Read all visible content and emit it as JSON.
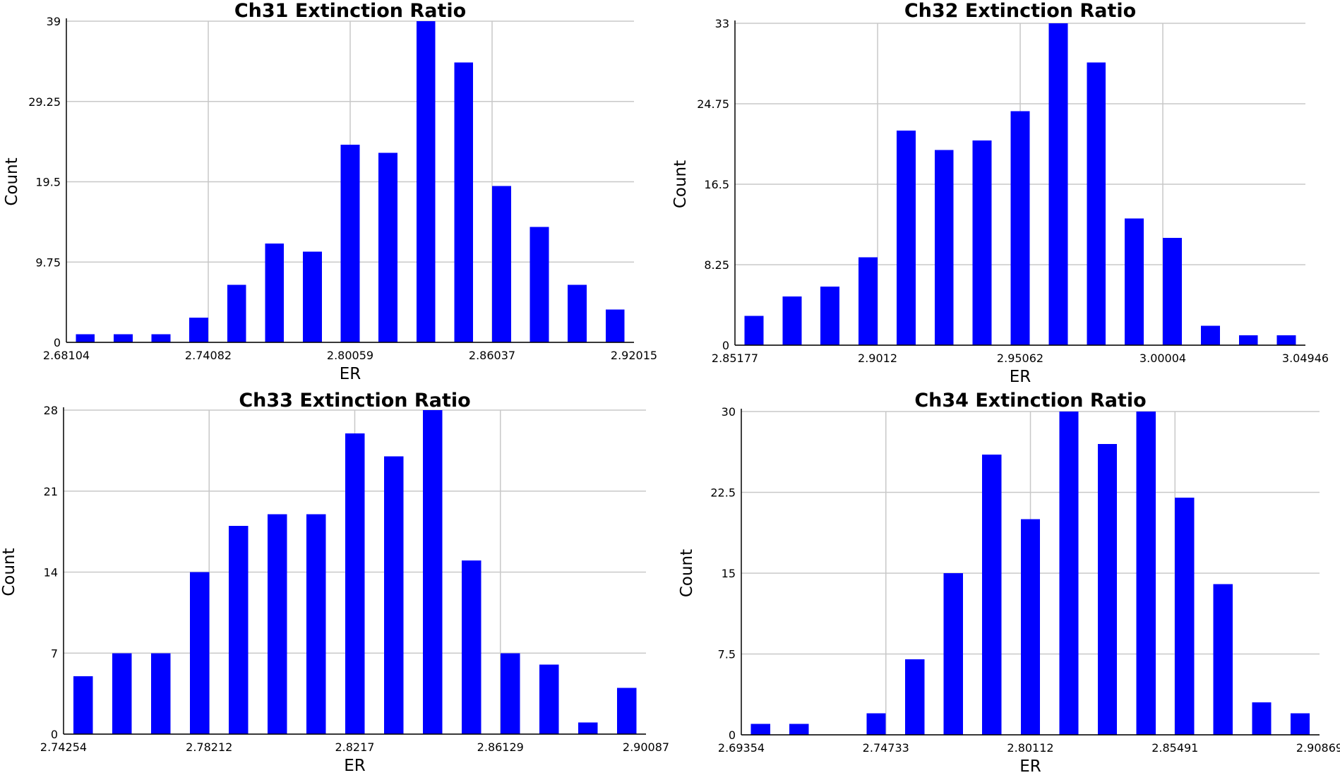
{
  "colors": {
    "bar": "#0000ff",
    "grid": "#c8c8c8",
    "axis": "#000000"
  },
  "chart_data": [
    {
      "type": "bar",
      "title": "Ch31 Extinction Ratio",
      "xlabel": "ER",
      "ylabel": "Count",
      "grid": true,
      "ylim": [
        0,
        39
      ],
      "yticks": [
        "0",
        "9.75",
        "19.5",
        "29.25",
        "39"
      ],
      "xlim": [
        2.68104,
        2.92015
      ],
      "xtick_values": [
        2.68104,
        2.74082,
        2.80059,
        2.86037,
        2.92015
      ],
      "xtick_labels": [
        "2.68104",
        "2.74082",
        "2.80059",
        "2.86037",
        "2.92015"
      ],
      "bin_width": 0.01594,
      "x": [
        2.68104,
        2.69698,
        2.71292,
        2.72886,
        2.7448,
        2.76074,
        2.77668,
        2.79262,
        2.80856,
        2.8245,
        2.84044,
        2.85638,
        2.87232,
        2.88826,
        2.9042
      ],
      "values": [
        1,
        1,
        1,
        3,
        7,
        12,
        11,
        24,
        23,
        39,
        34,
        19,
        14,
        7,
        4
      ]
    },
    {
      "type": "bar",
      "title": "Ch32 Extinction Ratio",
      "xlabel": "ER",
      "ylabel": "Count",
      "grid": true,
      "ylim": [
        0,
        33
      ],
      "yticks": [
        "0",
        "8.25",
        "16.5",
        "24.75",
        "33"
      ],
      "xlim": [
        2.85177,
        3.04946
      ],
      "xtick_values": [
        2.85177,
        2.9012,
        2.95062,
        3.00004,
        3.04946
      ],
      "xtick_labels": [
        "2.85177",
        "2.9012",
        "2.95062",
        "3.00004",
        "3.04946"
      ],
      "bin_width": 0.01318,
      "x": [
        2.85177,
        2.86495,
        2.87813,
        2.89131,
        2.90449,
        2.91767,
        2.93085,
        2.94403,
        2.95721,
        2.97039,
        2.98357,
        2.99675,
        3.00993,
        3.02311,
        3.03629
      ],
      "values": [
        3,
        5,
        6,
        9,
        22,
        20,
        21,
        24,
        33,
        29,
        13,
        11,
        2,
        1,
        1
      ]
    },
    {
      "type": "bar",
      "title": "Ch33 Extinction Ratio",
      "xlabel": "ER",
      "ylabel": "Count",
      "grid": true,
      "ylim": [
        0,
        28
      ],
      "yticks": [
        "0",
        "7",
        "14",
        "21",
        "28"
      ],
      "xlim": [
        2.74254,
        2.90087
      ],
      "xtick_values": [
        2.74254,
        2.78212,
        2.8217,
        2.86129,
        2.90087
      ],
      "xtick_labels": [
        "2.74254",
        "2.78212",
        "2.8217",
        "2.86129",
        "2.90087"
      ],
      "bin_width": 0.01056,
      "x": [
        2.74254,
        2.7531,
        2.76366,
        2.77422,
        2.78478,
        2.79534,
        2.8059,
        2.81646,
        2.82702,
        2.83758,
        2.84814,
        2.8587,
        2.86926,
        2.87982,
        2.89038
      ],
      "values": [
        5,
        7,
        7,
        14,
        18,
        19,
        19,
        26,
        24,
        28,
        15,
        7,
        6,
        1,
        4
      ]
    },
    {
      "type": "bar",
      "title": "Ch34 Extinction Ratio",
      "xlabel": "ER",
      "ylabel": "Count",
      "grid": true,
      "ylim": [
        0,
        30
      ],
      "yticks": [
        "0",
        "7.5",
        "15",
        "22.5",
        "30"
      ],
      "xlim": [
        2.69354,
        2.90869
      ],
      "xtick_values": [
        2.69354,
        2.74733,
        2.80112,
        2.85491,
        2.90869
      ],
      "xtick_labels": [
        "2.69354",
        "2.74733",
        "2.80112",
        "2.85491",
        "2.90869"
      ],
      "bin_width": 0.01434,
      "x": [
        2.69354,
        2.70788,
        2.72222,
        2.73656,
        2.7509,
        2.76524,
        2.77958,
        2.79392,
        2.80826,
        2.8226,
        2.83694,
        2.85128,
        2.86562,
        2.87996,
        2.8943
      ],
      "values": [
        1,
        1,
        0,
        2,
        7,
        15,
        26,
        20,
        30,
        27,
        30,
        22,
        14,
        3,
        2
      ]
    }
  ]
}
